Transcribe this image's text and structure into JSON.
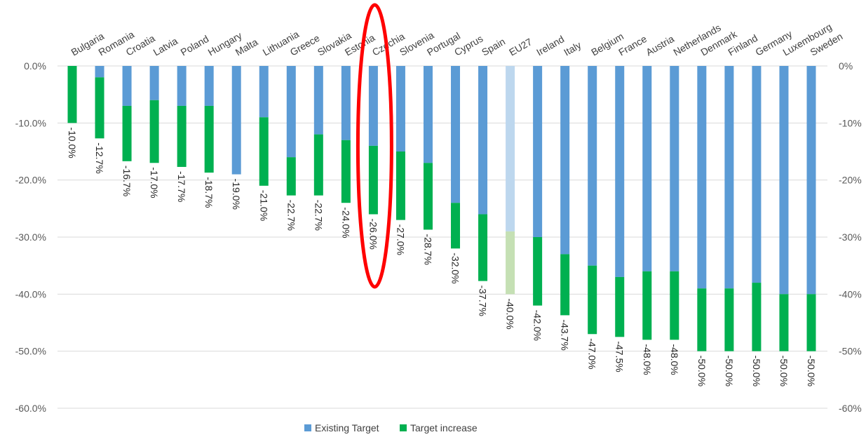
{
  "chart_data": {
    "type": "bar",
    "stacked": true,
    "categories": [
      "Bulgaria",
      "Romania",
      "Croatia",
      "Latvia",
      "Poland",
      "Hungary",
      "Malta",
      "Lithuania",
      "Greece",
      "Slovakia",
      "Estonia",
      "Czechia",
      "Slovenia",
      "Portugal",
      "Cyprus",
      "Spain",
      "EU27",
      "Ireland",
      "Italy",
      "Belgium",
      "France",
      "Austria",
      "Netherlands",
      "Denmark",
      "Finland",
      "Germany",
      "Luxembourg",
      "Sweden"
    ],
    "series": [
      {
        "name": "Existing Target",
        "color": "#5b9bd5",
        "values": [
          0,
          -2,
          -7,
          -6,
          -7,
          -7,
          -19,
          -9,
          -16,
          -12,
          -13,
          -14,
          -15,
          -17,
          -24,
          -26,
          -29,
          -30,
          -33,
          -35,
          -37,
          -36,
          -36,
          -39,
          -39,
          -38,
          -40,
          -40
        ]
      },
      {
        "name": "Target increase",
        "color": "#00b050",
        "values": [
          -10,
          -10.7,
          -9.7,
          -11,
          -10.7,
          -11.7,
          0,
          -12,
          -6.7,
          -10.7,
          -11,
          -12,
          -12,
          -11.7,
          -8,
          -11.7,
          -11,
          -12,
          -10.7,
          -12,
          -10.5,
          -12,
          -12,
          -11,
          -11,
          -12,
          -10,
          -10
        ]
      }
    ],
    "totals": [
      "-10.0%",
      "-12.7%",
      "-16.7%",
      "-17.0%",
      "-17.7%",
      "-18.7%",
      "-19.0%",
      "-21.0%",
      "-22.7%",
      "-22.7%",
      "-24.0%",
      "-26.0%",
      "-27.0%",
      "-28.7%",
      "-32.0%",
      "-37.7%",
      "-40.0%",
      "-42.0%",
      "-43.7%",
      "-47.0%",
      "-47.5%",
      "-48.0%",
      "-48.0%",
      "-50.0%",
      "-50.0%",
      "-50.0%",
      "-50.0%",
      "-50.0%"
    ],
    "highlight_faded_category": "EU27",
    "faded_colors": {
      "Existing Target": "#bdd7ee",
      "Target increase": "#c5e0b4"
    },
    "ylim": [
      -60,
      0
    ],
    "y_ticks_left": [
      "0.0%",
      "-10.0%",
      "-20.0%",
      "-30.0%",
      "-40.0%",
      "-50.0%",
      "-60.0%"
    ],
    "y_ticks_right": [
      "0%",
      "-10%",
      "-20%",
      "-30%",
      "-40%",
      "-50%",
      "-60%"
    ],
    "grid": true,
    "legend_position": "bottom",
    "title": "",
    "xlabel": "",
    "ylabel": "",
    "annotation": {
      "type": "ellipse",
      "target_category": "Czechia",
      "color": "#ff0000"
    }
  }
}
